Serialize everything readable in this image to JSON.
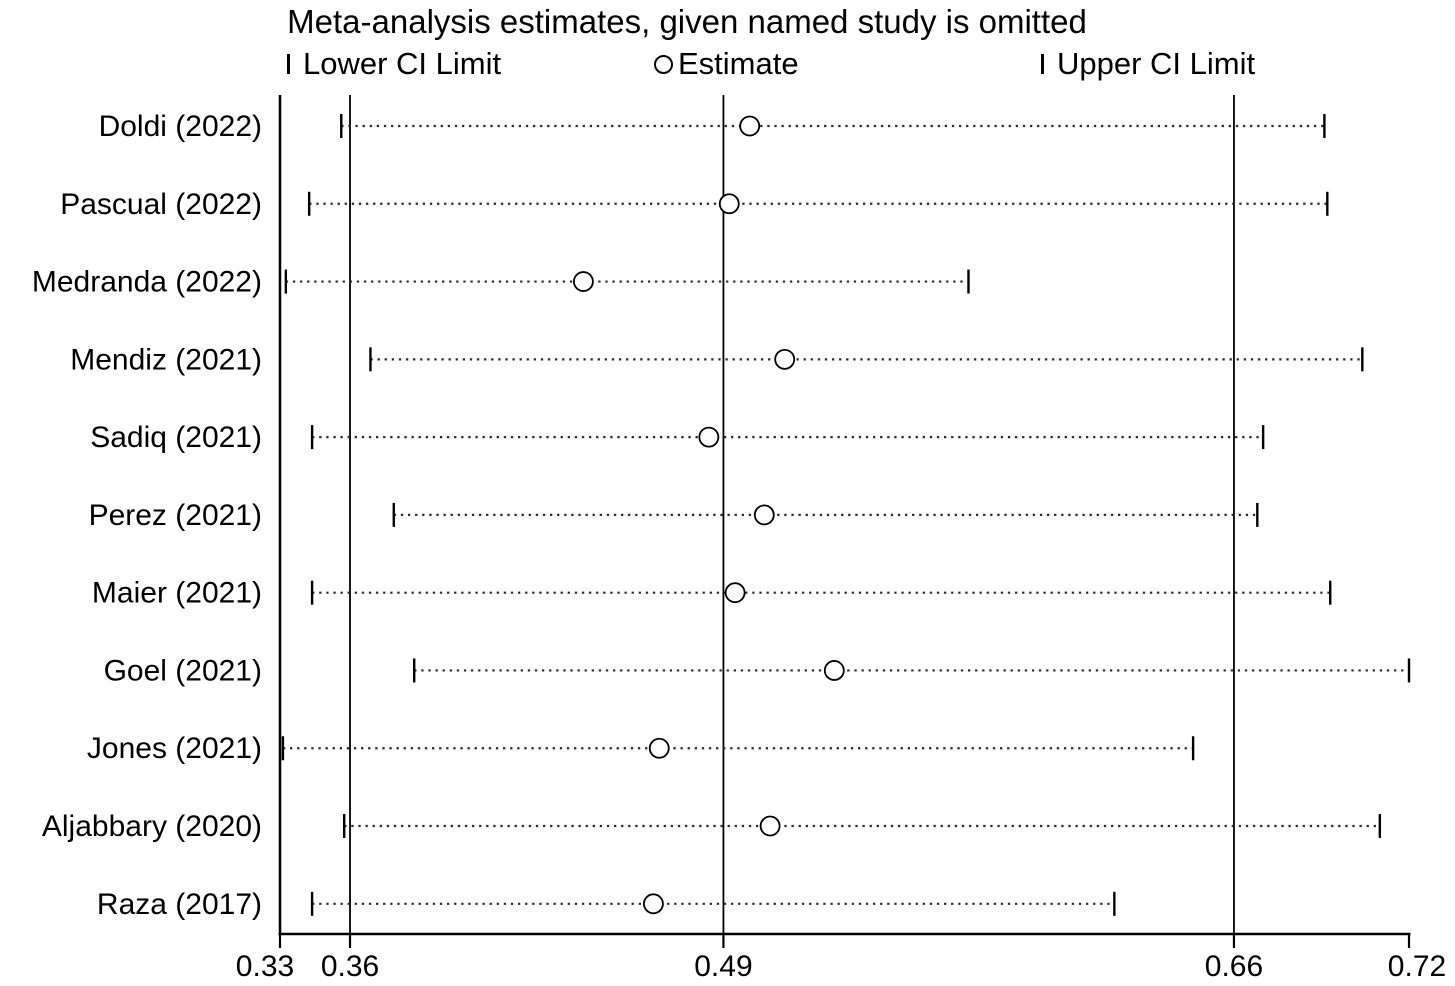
{
  "chart_data": {
    "type": "forest",
    "title": "Meta-analysis estimates, given named study is omitted",
    "legend": [
      "Lower CI Limit",
      "Estimate",
      "Upper CI Limit"
    ],
    "x_axis": {
      "range": [
        0.334,
        0.721
      ],
      "ticks": [
        {
          "value": 0.334,
          "label": "0.33"
        },
        {
          "value": 0.358,
          "label": "0.36"
        },
        {
          "value": 0.486,
          "label": "0.49"
        },
        {
          "value": 0.661,
          "label": "0.66"
        },
        {
          "value": 0.721,
          "label": "0.72"
        }
      ],
      "gridlines": [
        0.358,
        0.486,
        0.661
      ]
    },
    "studies": [
      {
        "label": "Doldi (2022)",
        "lower": 0.355,
        "estimate": 0.495,
        "upper": 0.692
      },
      {
        "label": "Pascual (2022)",
        "lower": 0.344,
        "estimate": 0.488,
        "upper": 0.693
      },
      {
        "label": "Medranda (2022)",
        "lower": 0.336,
        "estimate": 0.438,
        "upper": 0.57
      },
      {
        "label": "Mendiz (2021)",
        "lower": 0.365,
        "estimate": 0.507,
        "upper": 0.705
      },
      {
        "label": "Sadiq (2021)",
        "lower": 0.345,
        "estimate": 0.481,
        "upper": 0.671
      },
      {
        "label": "Perez (2021)",
        "lower": 0.373,
        "estimate": 0.5,
        "upper": 0.669
      },
      {
        "label": "Maier (2021)",
        "lower": 0.345,
        "estimate": 0.49,
        "upper": 0.694
      },
      {
        "label": "Goel (2021)",
        "lower": 0.38,
        "estimate": 0.524,
        "upper": 0.721
      },
      {
        "label": "Jones (2021)",
        "lower": 0.335,
        "estimate": 0.464,
        "upper": 0.647
      },
      {
        "label": "Aljabbary (2020)",
        "lower": 0.356,
        "estimate": 0.502,
        "upper": 0.711
      },
      {
        "label": "Raza (2017)",
        "lower": 0.345,
        "estimate": 0.462,
        "upper": 0.62
      }
    ]
  },
  "colors": {
    "ink": "#000000",
    "background": "#ffffff",
    "dotted_line": "#2b2b2b"
  }
}
